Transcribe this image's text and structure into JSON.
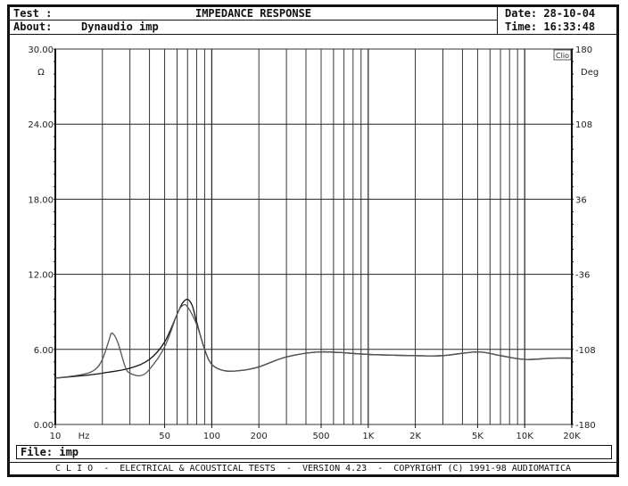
{
  "header": {
    "test_label": "Test :",
    "title": "IMPEDANCE RESPONSE",
    "about_label": "About:",
    "about_value": "Dynaudio imp",
    "date": "Date: 28-10-04",
    "time": "Time: 16:33:48"
  },
  "file": {
    "label": "File:",
    "value": "imp",
    "text": "File:  imp"
  },
  "footer": {
    "text": "C L I O  -  ELECTRICAL & ACOUSTICAL TESTS  -  VERSION 4.23  -  COPYRIGHT (C) 1991-98 AUDIOMATICA"
  },
  "badge": "Clio",
  "chart_data": {
    "type": "line",
    "title": "IMPEDANCE RESPONSE",
    "xlabel": "Hz",
    "ylabel": "Ω",
    "y2label": "Deg",
    "xscale": "log",
    "xlim": [
      10,
      20000
    ],
    "ylim": [
      0,
      30
    ],
    "y2lim": [
      -180,
      180
    ],
    "x_ticks": [
      "10",
      "50",
      "100",
      "200",
      "500",
      "1K",
      "2K",
      "5K",
      "10K",
      "20K"
    ],
    "y_ticks": [
      "0.00",
      "6.00",
      "12.00",
      "18.00",
      "24.00",
      "30.00"
    ],
    "y2_ticks": [
      "-180",
      "-108",
      "-36",
      "36",
      "108",
      "180"
    ],
    "grid": true,
    "series": [
      {
        "name": "curve-a",
        "x": [
          10,
          15,
          20,
          30,
          40,
          50,
          60,
          65,
          70,
          75,
          80,
          90,
          100,
          120,
          150,
          200,
          300,
          500,
          1000,
          2000,
          3000,
          5000,
          7000,
          10000,
          15000,
          20000
        ],
        "values": [
          3.7,
          3.9,
          4.1,
          4.5,
          5.2,
          6.6,
          8.8,
          9.7,
          10.0,
          9.5,
          8.2,
          6.0,
          4.8,
          4.3,
          4.3,
          4.6,
          5.4,
          5.8,
          5.6,
          5.5,
          5.5,
          5.8,
          5.5,
          5.2,
          5.3,
          5.3
        ]
      },
      {
        "name": "curve-b",
        "x": [
          10,
          15,
          18,
          20,
          22,
          23,
          25,
          28,
          30,
          35,
          40,
          50,
          60,
          65,
          70,
          80,
          90,
          100,
          120,
          150,
          200,
          300,
          500,
          1000,
          2000,
          3000,
          5000,
          7000,
          10000,
          15000,
          20000
        ],
        "values": [
          3.7,
          4.0,
          4.4,
          5.2,
          6.7,
          7.3,
          6.6,
          4.6,
          4.1,
          3.9,
          4.4,
          6.2,
          8.8,
          9.5,
          9.4,
          8.0,
          6.0,
          4.8,
          4.3,
          4.3,
          4.6,
          5.4,
          5.8,
          5.6,
          5.5,
          5.5,
          5.8,
          5.5,
          5.2,
          5.3,
          5.3
        ]
      }
    ]
  }
}
